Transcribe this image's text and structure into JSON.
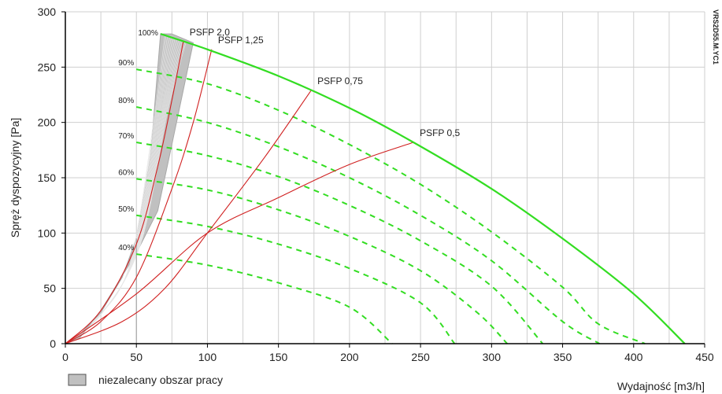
{
  "chart_data": {
    "type": "line",
    "xlabel": "Wydajność [m3/h]",
    "ylabel": "Spręż dyspozycyjny [Pa]",
    "xlim": [
      0,
      450
    ],
    "ylim": [
      0,
      300
    ],
    "x_ticks": [
      0,
      50,
      100,
      150,
      200,
      250,
      300,
      350,
      400,
      450
    ],
    "y_ticks": [
      0,
      50,
      100,
      150,
      200,
      250,
      300
    ],
    "grid": true,
    "side_code": "VRS2D55.M.YC1",
    "legend": {
      "placement": "bottom-left",
      "label": "niezalecany obszar pracy",
      "color": "#c0c0c0"
    },
    "max_curve": {
      "color": "#33dd22",
      "points": [
        [
          67,
          280
        ],
        [
          100,
          266
        ],
        [
          150,
          242
        ],
        [
          200,
          213
        ],
        [
          245,
          182
        ],
        [
          300,
          140
        ],
        [
          350,
          95
        ],
        [
          400,
          45
        ],
        [
          436,
          0
        ]
      ]
    },
    "speed_curves": [
      {
        "label": "90%",
        "color": "#33dd22",
        "points": [
          [
            50,
            248
          ],
          [
            100,
            235
          ],
          [
            150,
            211
          ],
          [
            200,
            180
          ],
          [
            250,
            144
          ],
          [
            300,
            101
          ],
          [
            350,
            51
          ],
          [
            375,
            18
          ],
          [
            408,
            0
          ]
        ]
      },
      {
        "label": "80%",
        "color": "#33dd22",
        "points": [
          [
            50,
            214
          ],
          [
            100,
            200
          ],
          [
            150,
            178
          ],
          [
            200,
            150
          ],
          [
            250,
            116
          ],
          [
            300,
            75
          ],
          [
            350,
            20
          ],
          [
            376,
            0
          ]
        ]
      },
      {
        "label": "70%",
        "color": "#33dd22",
        "points": [
          [
            50,
            182
          ],
          [
            100,
            170
          ],
          [
            150,
            151
          ],
          [
            200,
            125
          ],
          [
            250,
            93
          ],
          [
            300,
            52
          ],
          [
            336,
            0
          ]
        ]
      },
      {
        "label": "60%",
        "color": "#33dd22",
        "points": [
          [
            50,
            149
          ],
          [
            100,
            139
          ],
          [
            150,
            121
          ],
          [
            200,
            97
          ],
          [
            250,
            66
          ],
          [
            290,
            28
          ],
          [
            311,
            0
          ]
        ]
      },
      {
        "label": "50%",
        "color": "#33dd22",
        "points": [
          [
            50,
            116
          ],
          [
            100,
            106
          ],
          [
            150,
            90
          ],
          [
            200,
            68
          ],
          [
            250,
            37
          ],
          [
            274,
            0
          ]
        ]
      },
      {
        "label": "40%",
        "color": "#33dd22",
        "points": [
          [
            50,
            81
          ],
          [
            100,
            71
          ],
          [
            150,
            55
          ],
          [
            200,
            33
          ],
          [
            230,
            0
          ]
        ]
      }
    ],
    "psfp_curves": [
      {
        "label": "PSFP 2,0",
        "color": "#d02020",
        "points": [
          [
            0,
            0
          ],
          [
            25,
            30
          ],
          [
            50,
            90
          ],
          [
            65,
            160
          ],
          [
            75,
            220
          ],
          [
            83,
            273
          ]
        ]
      },
      {
        "label": "PSFP 1,25",
        "color": "#d02020",
        "points": [
          [
            0,
            0
          ],
          [
            25,
            20
          ],
          [
            50,
            60
          ],
          [
            75,
            140
          ],
          [
            90,
            200
          ],
          [
            103,
            266
          ]
        ]
      },
      {
        "label": "PSFP 0,75",
        "color": "#d02020",
        "points": [
          [
            0,
            0
          ],
          [
            40,
            20
          ],
          [
            70,
            50
          ],
          [
            100,
            100
          ],
          [
            140,
            168
          ],
          [
            173,
            229
          ]
        ]
      },
      {
        "label": "PSFP 0,5",
        "color": "#d02020",
        "points": [
          [
            0,
            0
          ],
          [
            50,
            45
          ],
          [
            100,
            100
          ],
          [
            150,
            132
          ],
          [
            200,
            162
          ],
          [
            245,
            182
          ]
        ]
      }
    ],
    "unrecommended_area": {
      "color": "#c0c0c0",
      "points": [
        [
          0,
          0
        ],
        [
          10,
          8
        ],
        [
          25,
          28
        ],
        [
          40,
          60
        ],
        [
          50,
          95
        ],
        [
          60,
          170
        ],
        [
          67,
          280
        ],
        [
          75,
          280
        ],
        [
          90,
          272
        ],
        [
          75,
          180
        ],
        [
          65,
          120
        ],
        [
          50,
          82
        ],
        [
          25,
          30
        ],
        [
          10,
          5
        ]
      ]
    }
  }
}
